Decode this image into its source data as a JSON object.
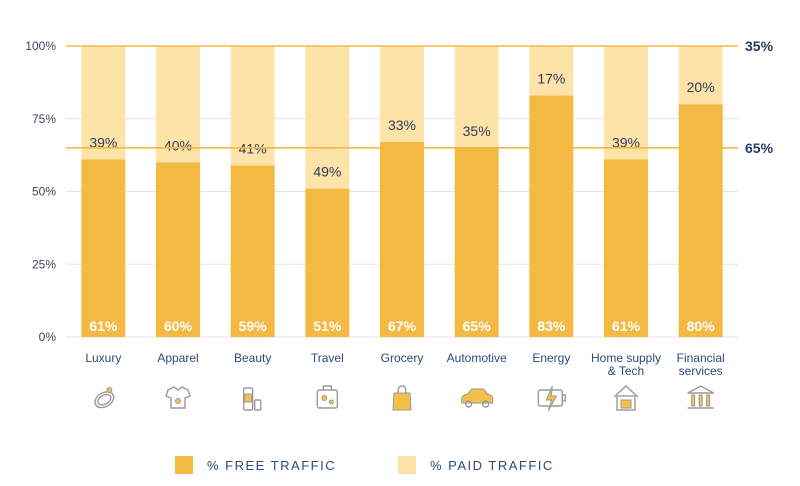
{
  "chart_data": {
    "type": "bar",
    "stacked": true,
    "categories": [
      "Luxury",
      "Apparel",
      "Beauty",
      "Travel",
      "Grocery",
      "Automotive",
      "Energy",
      "Home supply & Tech",
      "Financial services"
    ],
    "category_lines": [
      [
        "Luxury"
      ],
      [
        "Apparel"
      ],
      [
        "Beauty"
      ],
      [
        "Travel"
      ],
      [
        "Grocery"
      ],
      [
        "Automotive"
      ],
      [
        "Energy"
      ],
      [
        "Home supply",
        "& Tech"
      ],
      [
        "Financial",
        "services"
      ]
    ],
    "series": [
      {
        "name": "% FREE TRAFFIC",
        "values": [
          61,
          60,
          59,
          51,
          67,
          65,
          83,
          61,
          80
        ],
        "labels": [
          "61%",
          "60%",
          "59%",
          "51%",
          "67%",
          "65%",
          "83%",
          "61%",
          "80%"
        ],
        "color": "#f4b942"
      },
      {
        "name": "% PAID TRAFFIC",
        "values": [
          39,
          40,
          41,
          49,
          33,
          35,
          17,
          39,
          20
        ],
        "labels": [
          "39%",
          "40%",
          "41%",
          "49%",
          "33%",
          "35%",
          "17%",
          "39%",
          "20%"
        ],
        "color": "#fde3a7"
      }
    ],
    "ylim": [
      0,
      100
    ],
    "yticks": [
      0,
      25,
      50,
      75,
      100
    ],
    "ytick_labels": [
      "0%",
      "25%",
      "50%",
      "75%",
      "100%"
    ],
    "reference_lines": [
      {
        "value": 100,
        "label": "35%"
      },
      {
        "value": 65,
        "label": "65%"
      }
    ],
    "reference_color": "#f4b942",
    "gridlines": true,
    "legend_position": "bottom",
    "category_icons": [
      "ring-icon",
      "clothes-icon",
      "cosmetics-icon",
      "luggage-icon",
      "shopping-bag-icon",
      "car-icon",
      "battery-icon",
      "house-icon",
      "bank-icon"
    ]
  }
}
